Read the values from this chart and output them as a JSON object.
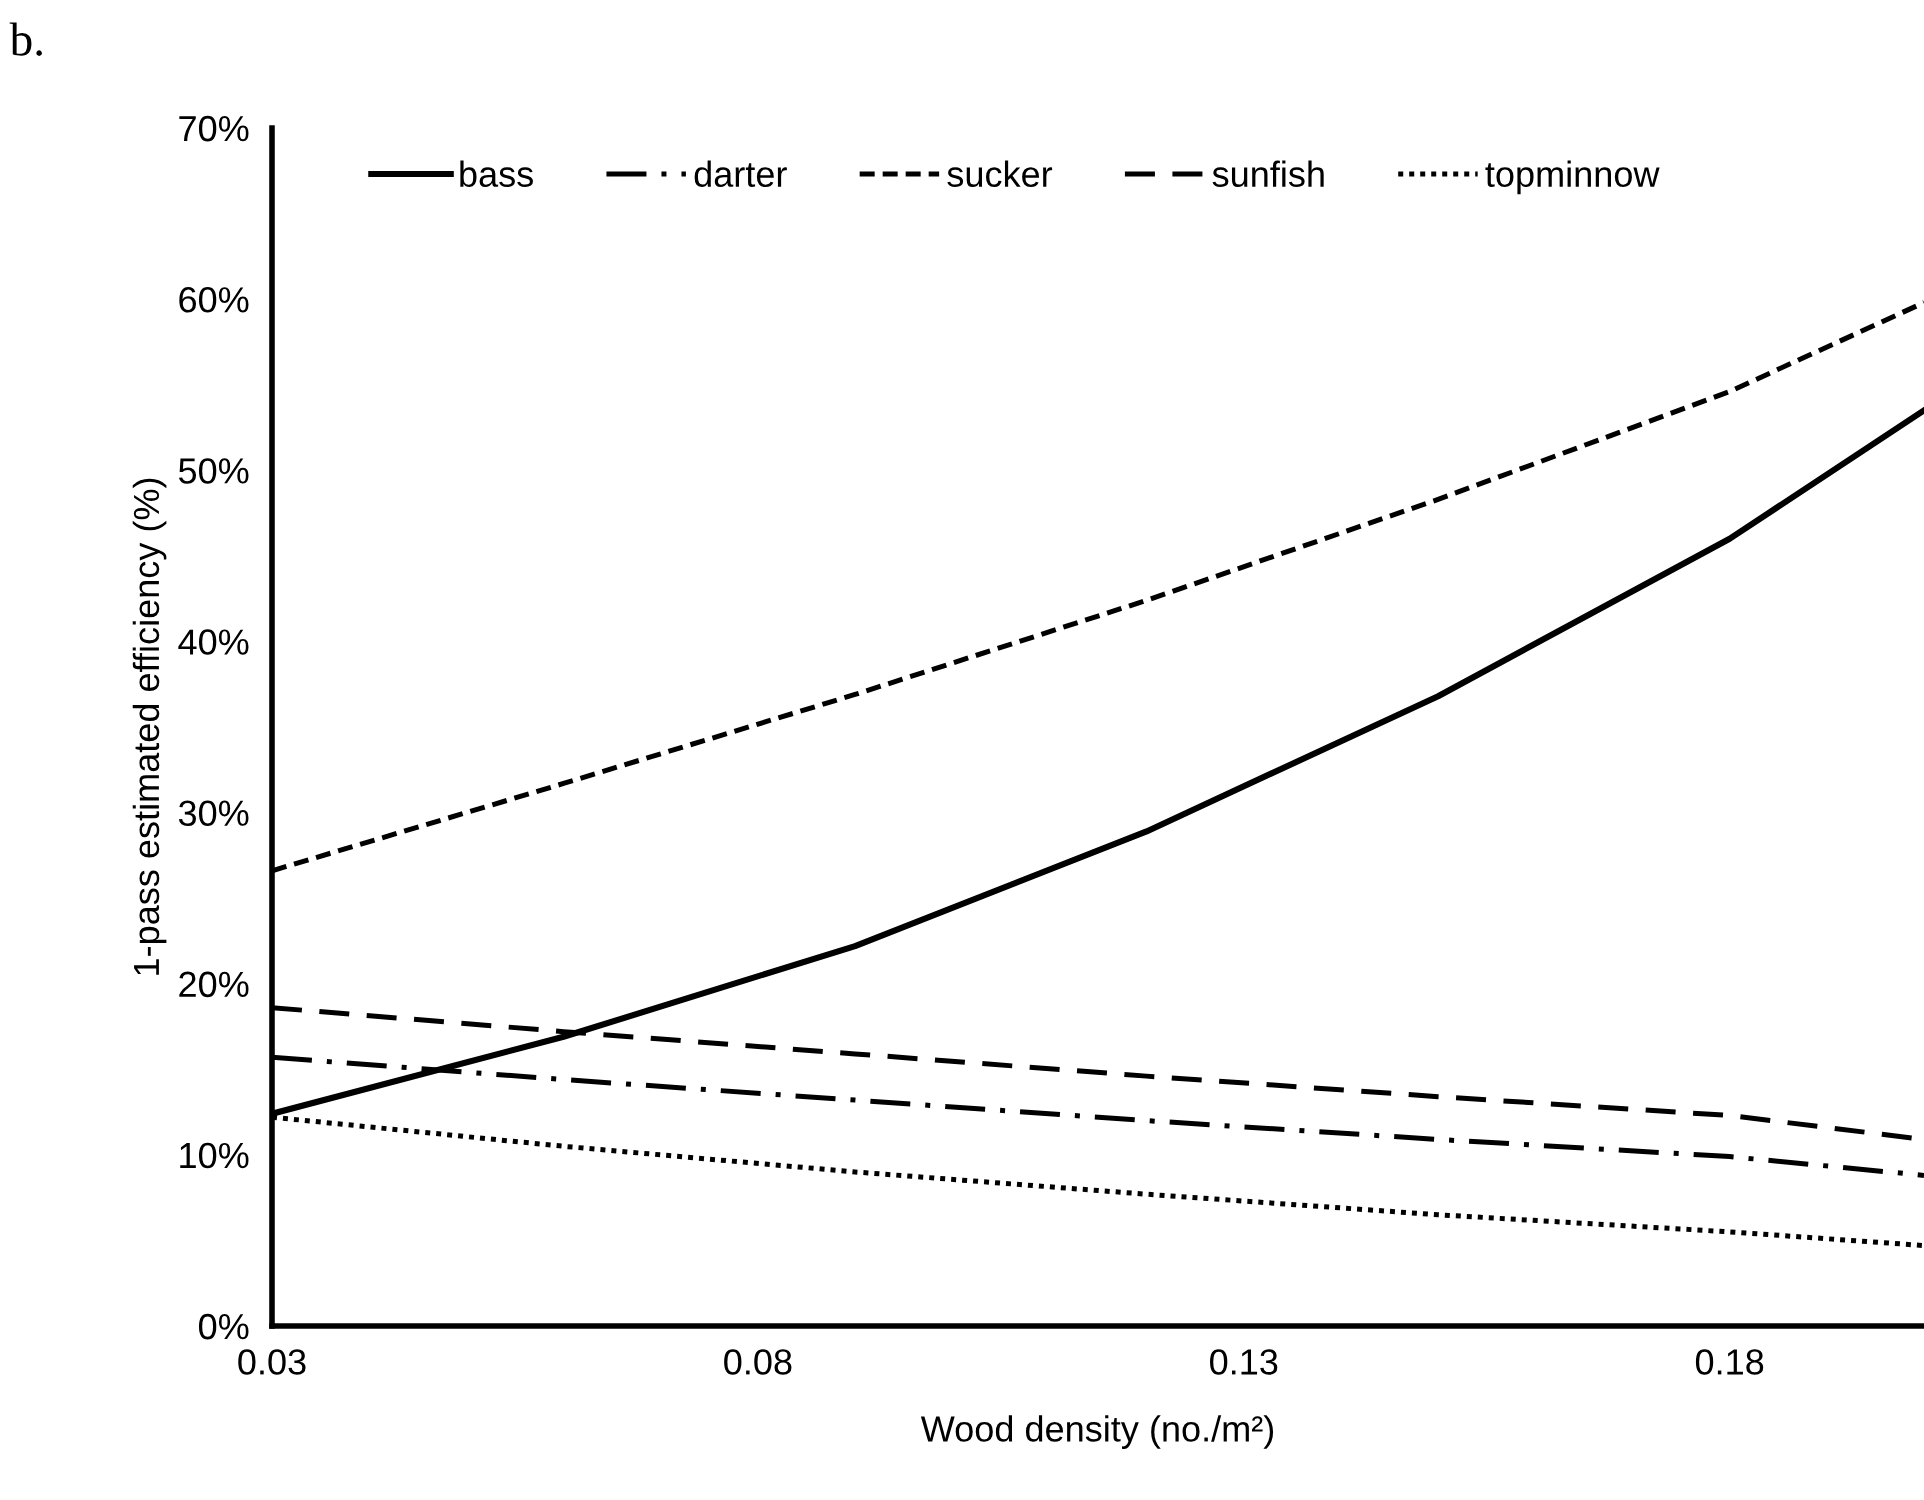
{
  "chart_data": {
    "type": "line",
    "title": "b.",
    "xlabel": "Wood density (no./m²)",
    "ylabel": "1-pass estimated efficiency (%)",
    "x": [
      0.03,
      0.06,
      0.09,
      0.12,
      0.15,
      0.18,
      0.2
    ],
    "series": [
      {
        "name": "bass",
        "color": "#000000",
        "line_style": "solid",
        "values": [
          12.4,
          16.9,
          22.2,
          28.9,
          36.8,
          46.0,
          53.5
        ]
      },
      {
        "name": "darter",
        "color": "#000000",
        "line_style": "dashdot",
        "values": [
          15.7,
          14.4,
          13.2,
          12.0,
          10.9,
          9.9,
          8.8
        ]
      },
      {
        "name": "sucker",
        "color": "#000000",
        "line_style": "dashed",
        "values": [
          26.6,
          31.7,
          36.9,
          42.4,
          48.3,
          54.6,
          59.8
        ]
      },
      {
        "name": "sunfish",
        "color": "#000000",
        "line_style": "longdash",
        "values": [
          18.6,
          17.2,
          15.9,
          14.6,
          13.4,
          12.3,
          10.9
        ]
      },
      {
        "name": "topminnow",
        "color": "#000000",
        "line_style": "dotted",
        "values": [
          12.2,
          10.5,
          9.0,
          7.7,
          6.5,
          5.5,
          4.7
        ]
      }
    ],
    "xlim": [
      0.03,
      0.2
    ],
    "xticks": [
      0.03,
      0.08,
      0.13,
      0.18
    ],
    "ylim": [
      0,
      70
    ],
    "yticks": [
      {
        "value": 0,
        "label": "0%"
      },
      {
        "value": 10,
        "label": "10%"
      },
      {
        "value": 20,
        "label": "20%"
      },
      {
        "value": 30,
        "label": "30%"
      },
      {
        "value": 40,
        "label": "40%"
      },
      {
        "value": 50,
        "label": "50%"
      },
      {
        "value": 60,
        "label": "60%"
      },
      {
        "value": 70,
        "label": "70%"
      }
    ],
    "grid": false,
    "legend": "top",
    "marker": "none"
  }
}
